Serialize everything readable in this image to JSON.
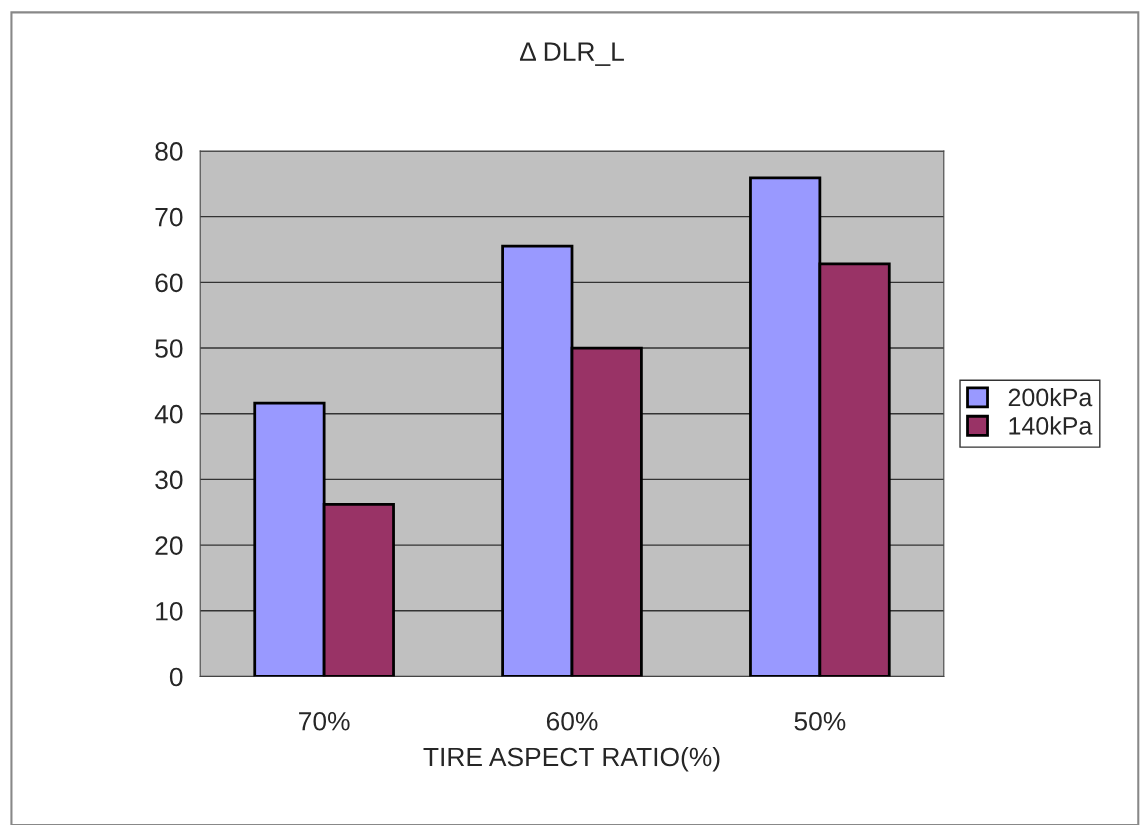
{
  "chart_data": {
    "type": "bar",
    "title": "Δ DLR_L",
    "xlabel": "TIRE ASPECT RATIO(%)",
    "categories": [
      "70%",
      "60%",
      "50%"
    ],
    "series": [
      {
        "name": "200kPa",
        "color": "#9999ff",
        "values": [
          41.6,
          65.5,
          75.9
        ]
      },
      {
        "name": "140kPa",
        "color": "#993366",
        "values": [
          26.2,
          50,
          62.8
        ]
      }
    ],
    "ylim": [
      0,
      80
    ],
    "yticks": [
      0,
      10,
      20,
      30,
      40,
      50,
      60,
      70,
      80
    ],
    "grid": "y",
    "legend": "right"
  }
}
